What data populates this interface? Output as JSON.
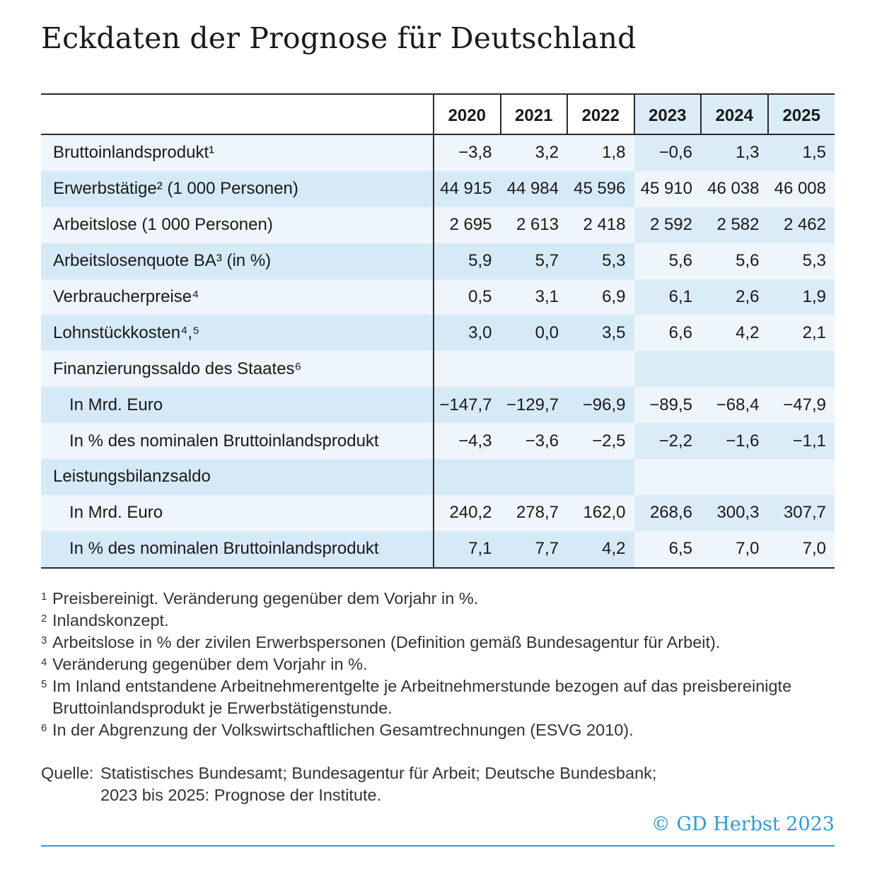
{
  "title": "Eckdaten der Prognose für Deutschland",
  "colors": {
    "accent": "#2e9bd6",
    "row_light": "#eef6fc",
    "row_dark": "#d6e9f7"
  },
  "years": [
    "2020",
    "2021",
    "2022",
    "2023",
    "2024",
    "2025"
  ],
  "forecast_years": [
    "2023",
    "2024",
    "2025"
  ],
  "rows": [
    {
      "label": "Bruttoinlandsprodukt¹",
      "indent": false,
      "values": [
        "−3,8",
        "3,2",
        "1,8",
        "−0,6",
        "1,3",
        "1,5"
      ]
    },
    {
      "label": "Erwerbstätige² (1 000 Personen)",
      "indent": false,
      "values": [
        "44 915",
        "44 984",
        "45 596",
        "45 910",
        "46 038",
        "46 008"
      ]
    },
    {
      "label": "Arbeitslose (1 000 Personen)",
      "indent": false,
      "values": [
        "2 695",
        "2 613",
        "2 418",
        "2 592",
        "2 582",
        "2 462"
      ]
    },
    {
      "label": "Arbeitslosenquote BA³ (in %)",
      "indent": false,
      "values": [
        "5,9",
        "5,7",
        "5,3",
        "5,6",
        "5,6",
        "5,3"
      ]
    },
    {
      "label": "Verbraucherpreise⁴",
      "indent": false,
      "values": [
        "0,5",
        "3,1",
        "6,9",
        "6,1",
        "2,6",
        "1,9"
      ]
    },
    {
      "label": "Lohnstückkosten⁴,⁵",
      "indent": false,
      "values": [
        "3,0",
        "0,0",
        "3,5",
        "6,6",
        "4,2",
        "2,1"
      ]
    },
    {
      "label": "Finanzierungssaldo des Staates⁶",
      "indent": false,
      "values": [
        "",
        "",
        "",
        "",
        "",
        ""
      ]
    },
    {
      "label": "In Mrd. Euro",
      "indent": true,
      "values": [
        "−147,7",
        "−129,7",
        "−96,9",
        "−89,5",
        "−68,4",
        "−47,9"
      ]
    },
    {
      "label": "In % des nominalen Bruttoinlandsprodukt",
      "indent": true,
      "values": [
        "−4,3",
        "−3,6",
        "−2,5",
        "−2,2",
        "−1,6",
        "−1,1"
      ]
    },
    {
      "label": "Leistungsbilanzsaldo",
      "indent": false,
      "values": [
        "",
        "",
        "",
        "",
        "",
        ""
      ]
    },
    {
      "label": "In Mrd. Euro",
      "indent": true,
      "values": [
        "240,2",
        "278,7",
        "162,0",
        "268,6",
        "300,3",
        "307,7"
      ]
    },
    {
      "label": "In % des nominalen Bruttoinlandsprodukt",
      "indent": true,
      "values": [
        "7,1",
        "7,7",
        "4,2",
        "6,5",
        "7,0",
        "7,0"
      ]
    }
  ],
  "footnotes": [
    {
      "mark": "1",
      "text": "Preisbereinigt. Veränderung gegenüber dem Vorjahr in %."
    },
    {
      "mark": "2",
      "text": "Inlandskonzept."
    },
    {
      "mark": "3",
      "text": "Arbeitslose in % der zivilen Erwerbspersonen (Definition gemäß Bundesagentur für Arbeit)."
    },
    {
      "mark": "4",
      "text": "Veränderung gegenüber dem Vorjahr in %."
    },
    {
      "mark": "5",
      "text": "Im Inland entstandene Arbeitnehmerentgelte je Arbeitnehmerstunde bezogen auf das preisbereinigte Bruttoinlandsprodukt je Erwerbstätigenstunde."
    },
    {
      "mark": "6",
      "text": "In der Abgrenzung der Volkswirtschaftlichen Gesamtrechnungen (ESVG 2010)."
    }
  ],
  "source": {
    "label": "Quelle:",
    "line1": "Statistisches Bundesamt; Bundesagentur für Arbeit; Deutsche Bundesbank;",
    "line2": "2023 bis 2025: Prognose der Institute."
  },
  "copyright": "© GD Herbst 2023"
}
